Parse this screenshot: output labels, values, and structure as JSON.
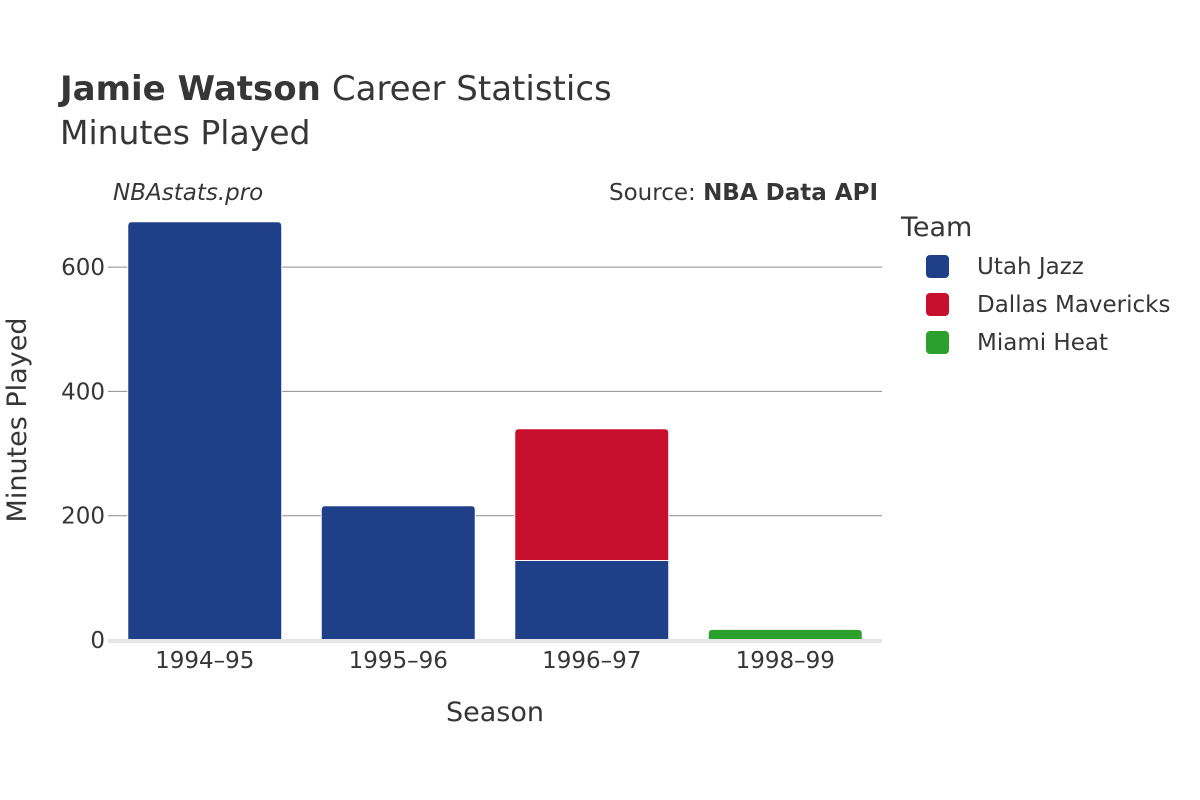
{
  "header": {
    "player_name": "Jamie Watson",
    "title_rest": "Career Statistics",
    "subtitle": "Minutes Played"
  },
  "watermark": "NBAstats.pro",
  "source": {
    "prefix": "Source: ",
    "name": "NBA Data API"
  },
  "chart_data": {
    "type": "bar",
    "stacked": true,
    "title": "Jamie Watson Career Statistics",
    "subtitle": "Minutes Played",
    "xlabel": "Season",
    "ylabel": "Minutes Played",
    "ylim": [
      0,
      700
    ],
    "yticks": [
      0,
      200,
      400,
      600
    ],
    "grid": true,
    "categories": [
      "1994–95",
      "1995–96",
      "1996–97",
      "1998–99"
    ],
    "series": [
      {
        "name": "Utah Jazz",
        "color": "#1f4088",
        "values": [
          673,
          216,
          128,
          0
        ]
      },
      {
        "name": "Dallas Mavericks",
        "color": "#c8102e",
        "values": [
          0,
          0,
          212,
          0
        ]
      },
      {
        "name": "Miami Heat",
        "color": "#2ca02c",
        "values": [
          0,
          0,
          0,
          17
        ]
      }
    ],
    "legend": {
      "title": "Team",
      "placement": "right"
    }
  }
}
